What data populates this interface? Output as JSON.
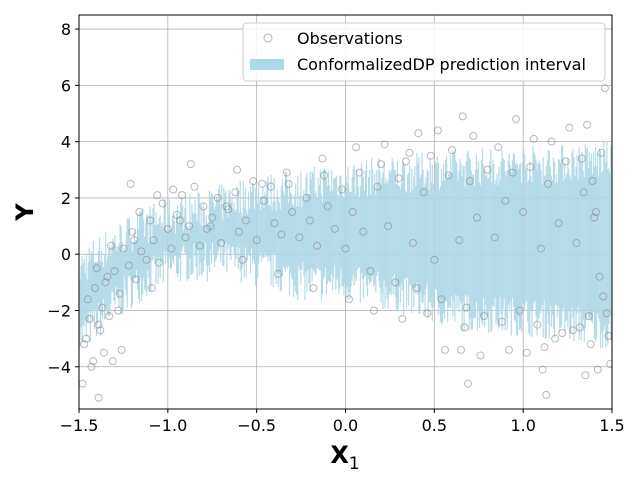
{
  "chart_data": {
    "type": "scatter",
    "title": "",
    "xlabel": "X",
    "xlabel_sub": "1",
    "ylabel": "Y",
    "xlim": [
      -1.5,
      1.5
    ],
    "ylim": [
      -5.5,
      8.5
    ],
    "x_ticks": [
      -1.5,
      -1.0,
      -0.5,
      0.0,
      0.5,
      1.0,
      1.5
    ],
    "x_tick_labels": [
      "−1.5",
      "−1.0",
      "−0.5",
      "0.0",
      "0.5",
      "1.0",
      "1.5"
    ],
    "y_ticks": [
      -4,
      -2,
      0,
      2,
      4,
      6,
      8
    ],
    "y_tick_labels": [
      "−4",
      "−2",
      "0",
      "2",
      "4",
      "6",
      "8"
    ],
    "grid": true,
    "legend_position": "top-right",
    "legend": [
      {
        "label": "Observations",
        "marker": "open-circle",
        "color": "#808080"
      },
      {
        "label": "ConformalizedDP prediction interval",
        "marker": "patch",
        "color": "#add8e6"
      }
    ],
    "series": [
      {
        "name": "ConformalizedDP prediction interval",
        "kind": "interval",
        "color": "#add8e6",
        "x": [
          -1.5,
          -1.4,
          -1.3,
          -1.2,
          -1.1,
          -1.0,
          -0.9,
          -0.8,
          -0.7,
          -0.6,
          -0.5,
          -0.4,
          -0.3,
          -0.2,
          -0.1,
          0.0,
          0.1,
          0.2,
          0.3,
          0.4,
          0.5,
          0.6,
          0.7,
          0.8,
          0.9,
          1.0,
          1.1,
          1.2,
          1.3,
          1.4,
          1.5
        ],
        "lower": [
          -3.0,
          -2.4,
          -1.8,
          -1.2,
          -0.8,
          -0.5,
          -0.3,
          -0.3,
          -0.2,
          -0.3,
          -0.5,
          -0.6,
          -0.9,
          -1.0,
          -1.0,
          -1.0,
          -1.2,
          -1.3,
          -1.4,
          -1.6,
          -1.8,
          -2.0,
          -2.1,
          -2.1,
          -2.2,
          -2.2,
          -2.3,
          -2.4,
          -2.5,
          -2.6,
          -2.7
        ],
        "upper": [
          -0.5,
          0.0,
          0.4,
          0.8,
          1.1,
          1.3,
          1.5,
          1.6,
          1.8,
          2.0,
          2.2,
          2.2,
          2.3,
          2.4,
          2.6,
          2.6,
          2.7,
          2.8,
          2.8,
          2.9,
          3.0,
          3.0,
          3.1,
          3.1,
          3.1,
          3.2,
          3.2,
          3.2,
          3.3,
          3.3,
          3.4
        ]
      },
      {
        "name": "Observations",
        "kind": "scatter",
        "color": "#808080",
        "x": [
          -1.48,
          -1.46,
          -1.45,
          -1.44,
          -1.42,
          -1.41,
          -1.4,
          -1.38,
          -1.37,
          -1.36,
          -1.35,
          -1.33,
          -1.32,
          -1.3,
          -1.28,
          -1.27,
          -1.25,
          -1.22,
          -1.2,
          -1.18,
          -1.16,
          -1.15,
          -1.12,
          -1.1,
          -1.08,
          -1.05,
          -1.03,
          -1.0,
          -0.98,
          -0.95,
          -0.92,
          -0.9,
          -0.88,
          -0.85,
          -0.82,
          -0.8,
          -0.78,
          -0.75,
          -0.72,
          -0.7,
          -0.66,
          -0.62,
          -0.6,
          -0.56,
          -0.52,
          -0.5,
          -0.46,
          -0.42,
          -0.4,
          -0.36,
          -0.32,
          -0.3,
          -0.26,
          -0.22,
          -0.2,
          -0.16,
          -0.12,
          -0.1,
          -0.06,
          -0.02,
          0.0,
          0.04,
          0.08,
          0.1,
          0.14,
          0.18,
          0.2,
          0.24,
          0.28,
          0.3,
          0.34,
          0.38,
          0.4,
          0.44,
          0.48,
          0.5,
          0.54,
          0.58,
          0.6,
          0.64,
          0.68,
          0.7,
          0.74,
          0.78,
          0.8,
          0.84,
          0.88,
          0.9,
          0.94,
          0.98,
          1.0,
          1.04,
          1.08,
          1.1,
          1.14,
          1.18,
          1.2,
          1.24,
          1.28,
          1.3,
          1.34,
          1.38,
          1.4,
          1.44,
          1.48,
          -1.47,
          -1.39,
          -1.34,
          -1.26,
          -1.19,
          -1.09,
          -0.97,
          -0.87,
          -0.67,
          -0.47,
          -0.33,
          -0.13,
          0.06,
          0.22,
          0.36,
          0.52,
          0.66,
          0.72,
          0.86,
          0.96,
          1.06,
          1.16,
          1.26,
          1.36,
          1.46,
          -1.43,
          -1.31,
          -1.21,
          -1.06,
          -0.93,
          -0.76,
          -0.58,
          -0.38,
          -0.18,
          0.02,
          0.16,
          0.32,
          0.46,
          0.56,
          0.76,
          0.92,
          1.02,
          1.12,
          1.22,
          1.32,
          1.42,
          1.49,
          1.47,
          1.45,
          1.43,
          1.41,
          1.39,
          1.37,
          0.65,
          0.67,
          0.69,
          1.13,
          1.11,
          0.41,
          -0.61,
          -1.39,
          1.35,
          1.33
        ],
        "y": [
          -4.6,
          -3.0,
          -1.6,
          -2.3,
          -3.8,
          -1.2,
          -0.5,
          -2.7,
          -1.9,
          -3.5,
          -1.0,
          -2.2,
          0.3,
          -0.6,
          -2.0,
          -1.4,
          0.2,
          -0.4,
          0.8,
          -0.9,
          1.5,
          0.1,
          -0.2,
          1.2,
          0.5,
          -0.3,
          1.8,
          0.9,
          0.2,
          1.4,
          2.1,
          0.6,
          1.0,
          2.4,
          0.3,
          1.7,
          0.9,
          1.3,
          2.0,
          0.4,
          1.6,
          2.2,
          0.8,
          1.2,
          2.6,
          0.5,
          1.9,
          2.4,
          1.1,
          0.7,
          2.5,
          1.5,
          0.6,
          2.0,
          1.2,
          0.3,
          2.8,
          1.7,
          0.9,
          2.3,
          0.2,
          1.5,
          2.9,
          0.8,
          -0.6,
          2.4,
          3.2,
          1.0,
          -1.0,
          2.7,
          3.3,
          0.4,
          -1.2,
          2.2,
          3.5,
          -0.2,
          -1.6,
          2.8,
          3.7,
          0.5,
          -1.9,
          2.6,
          1.3,
          -2.2,
          3.0,
          0.6,
          -2.4,
          1.9,
          2.9,
          -2.0,
          1.5,
          3.1,
          -2.5,
          0.2,
          2.5,
          -3.0,
          1.1,
          3.3,
          -2.7,
          0.4,
          2.2,
          -3.2,
          1.3,
          3.6,
          -2.9,
          -3.2,
          -2.5,
          -0.8,
          -3.4,
          0.5,
          -1.2,
          2.3,
          3.2,
          1.7,
          2.5,
          2.9,
          3.4,
          3.8,
          3.9,
          3.6,
          4.4,
          4.9,
          4.2,
          3.8,
          4.8,
          4.1,
          4.0,
          4.5,
          4.6,
          5.9,
          -4.0,
          -3.8,
          2.5,
          2.1,
          1.2,
          1.0,
          -0.2,
          -0.7,
          -1.2,
          -1.6,
          -2.0,
          -2.3,
          -2.1,
          -3.4,
          -3.6,
          -3.4,
          -3.5,
          -3.3,
          -2.8,
          -2.6,
          -4.1,
          -3.9,
          -2.1,
          -1.5,
          -0.8,
          1.5,
          2.6,
          -2.2,
          -3.4,
          -2.6,
          -4.6,
          -5.0,
          -4.1,
          4.3,
          3.0,
          -5.1,
          -4.3,
          3.4
        ]
      }
    ]
  }
}
